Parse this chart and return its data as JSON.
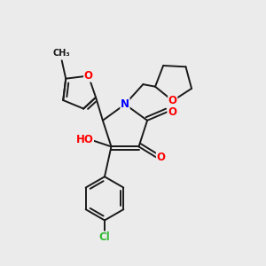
{
  "bg_color": "#ebebeb",
  "bond_color": "#1a1a1a",
  "bond_width": 1.4,
  "atom_colors": {
    "O": "#ff0000",
    "N": "#0000ff",
    "Cl": "#33bb33",
    "C": "#1a1a1a"
  },
  "font_size_atom": 8.5,
  "font_size_small": 7.5,
  "dbo": 0.015
}
